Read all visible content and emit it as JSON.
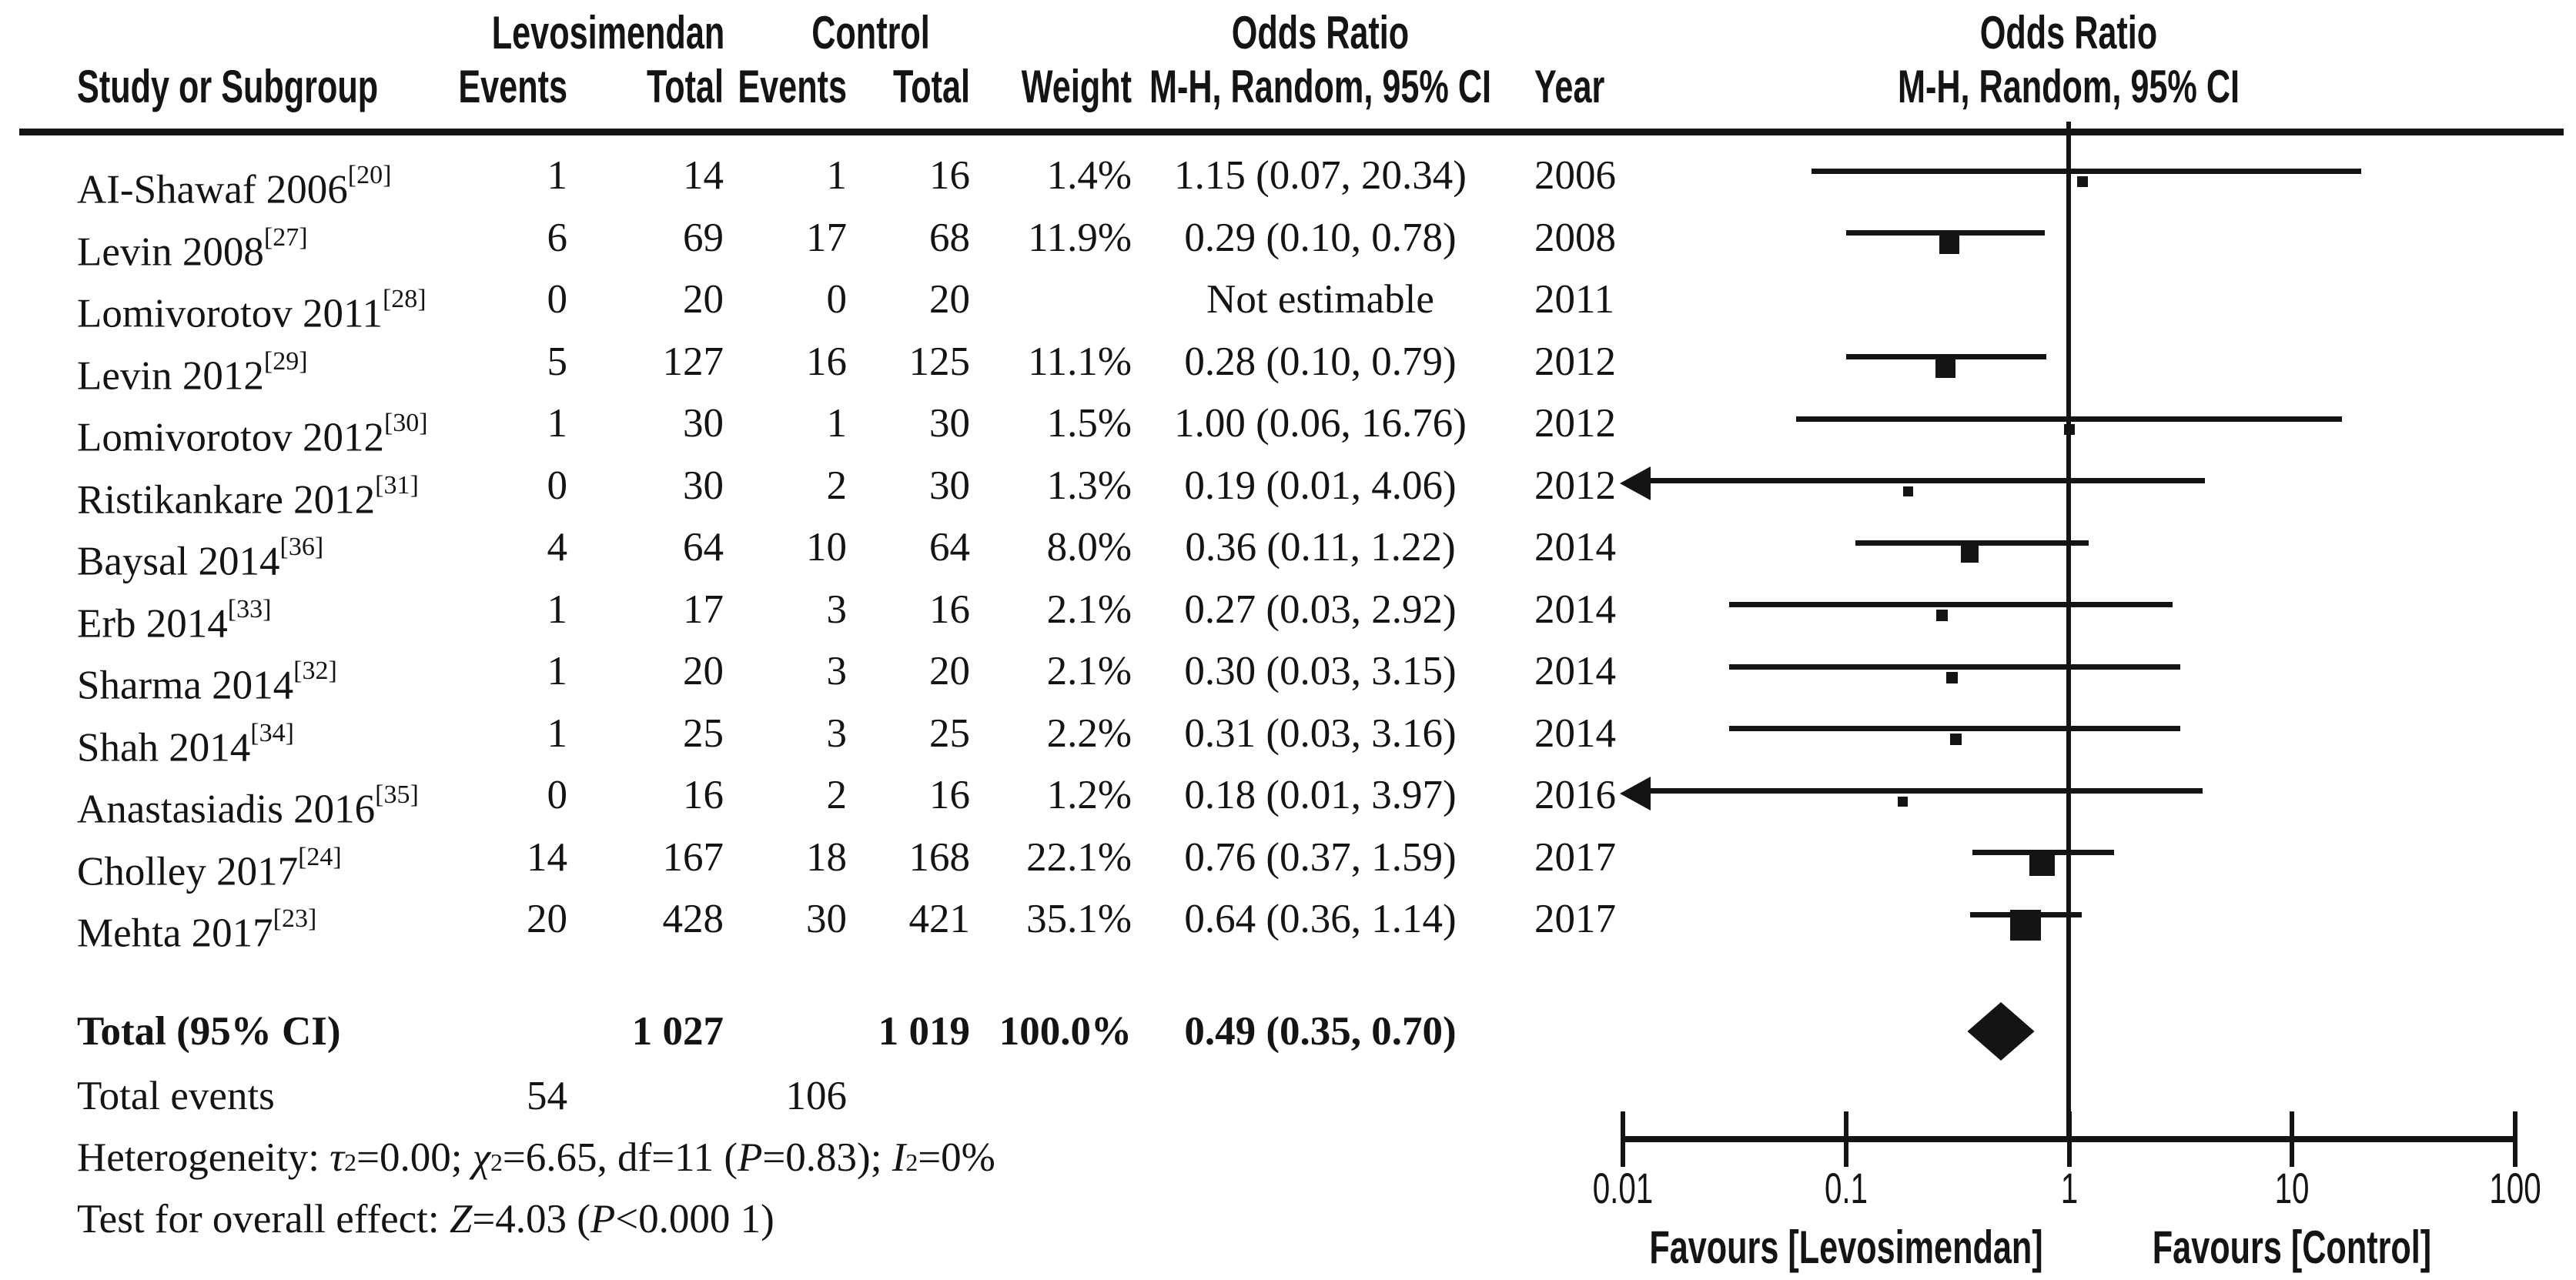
{
  "header": {
    "group_levosimendan": "Levosimendan",
    "group_control": "Control",
    "odds_ratio_table": "Odds Ratio",
    "odds_ratio_plot": "Odds Ratio",
    "study": "Study or Subgroup",
    "events_lev": "Events",
    "total_lev": "Total",
    "events_ctrl": "Events",
    "total_ctrl": "Total",
    "weight": "Weight",
    "mh_ci": "M-H, Random, 95% CI",
    "year": "Year",
    "mh_ci_plot": "M-H, Random, 95% CI"
  },
  "stats": {
    "heterogeneity": [
      {
        "t": "Heterogeneity: "
      },
      {
        "t": "τ",
        "i": true
      },
      {
        "t": "2",
        "sup": true
      },
      {
        "t": "=0.00; "
      },
      {
        "t": "χ",
        "i": true
      },
      {
        "t": "2",
        "sup": true
      },
      {
        "t": "=6.65, df=11 ("
      },
      {
        "t": "P",
        "i": true
      },
      {
        "t": "=0.83); "
      },
      {
        "t": "I",
        "i": true
      },
      {
        "t": "2",
        "sup": true
      },
      {
        "t": "=0%"
      }
    ],
    "overall": [
      {
        "t": "Test for overall effect: "
      },
      {
        "t": "Z",
        "i": true
      },
      {
        "t": "=4.03 ("
      },
      {
        "t": "P",
        "i": true
      },
      {
        "t": "<0.000 1)"
      }
    ]
  },
  "chart_data": {
    "type": "forest",
    "effect_measure": "Odds Ratio, M-H, Random, 95% CI",
    "x_axis": {
      "scale": "log10",
      "min": 0.01,
      "max": 100,
      "ticks": [
        0.01,
        0.1,
        1,
        10,
        100
      ],
      "tick_labels": [
        "0.01",
        "0.1",
        "1",
        "10",
        "100"
      ]
    },
    "favours": {
      "left": "Favours [Levosimendan]",
      "right": "Favours [Control]"
    },
    "studies": [
      {
        "name": "AI-Shawaf 2006",
        "ref": "[20]",
        "events_lev": "1",
        "total_lev": "14",
        "events_ctrl": "1",
        "total_ctrl": "16",
        "weight": "1.4%",
        "or_ci": "1.15 (0.07, 20.34)",
        "year": "2006",
        "or": 1.15,
        "lo": 0.07,
        "hi": 20.34,
        "w": 1.4,
        "estimable": true,
        "arrow_left": false
      },
      {
        "name": "Levin 2008",
        "ref": "[27]",
        "events_lev": "6",
        "total_lev": "69",
        "events_ctrl": "17",
        "total_ctrl": "68",
        "weight": "11.9%",
        "or_ci": "0.29 (0.10, 0.78)",
        "year": "2008",
        "or": 0.29,
        "lo": 0.1,
        "hi": 0.78,
        "w": 11.9,
        "estimable": true,
        "arrow_left": false
      },
      {
        "name": "Lomivorotov 2011",
        "ref": "[28]",
        "events_lev": "0",
        "total_lev": "20",
        "events_ctrl": "0",
        "total_ctrl": "20",
        "weight": "",
        "or_ci": "Not estimable",
        "year": "2011",
        "or": null,
        "lo": null,
        "hi": null,
        "w": null,
        "estimable": false,
        "arrow_left": false
      },
      {
        "name": "Levin 2012",
        "ref": "[29]",
        "events_lev": "5",
        "total_lev": "127",
        "events_ctrl": "16",
        "total_ctrl": "125",
        "weight": "11.1%",
        "or_ci": "0.28 (0.10, 0.79)",
        "year": "2012",
        "or": 0.28,
        "lo": 0.1,
        "hi": 0.79,
        "w": 11.1,
        "estimable": true,
        "arrow_left": false
      },
      {
        "name": "Lomivorotov 2012",
        "ref": "[30]",
        "events_lev": "1",
        "total_lev": "30",
        "events_ctrl": "1",
        "total_ctrl": "30",
        "weight": "1.5%",
        "or_ci": "1.00 (0.06, 16.76)",
        "year": "2012",
        "or": 1.0,
        "lo": 0.06,
        "hi": 16.76,
        "w": 1.5,
        "estimable": true,
        "arrow_left": false
      },
      {
        "name": "Ristikankare 2012",
        "ref": "[31]",
        "events_lev": "0",
        "total_lev": "30",
        "events_ctrl": "2",
        "total_ctrl": "30",
        "weight": "1.3%",
        "or_ci": "0.19 (0.01, 4.06)",
        "year": "2012",
        "or": 0.19,
        "lo": 0.01,
        "hi": 4.06,
        "w": 1.3,
        "estimable": true,
        "arrow_left": true
      },
      {
        "name": "Baysal 2014",
        "ref": "[36]",
        "events_lev": "4",
        "total_lev": "64",
        "events_ctrl": "10",
        "total_ctrl": "64",
        "weight": "8.0%",
        "or_ci": "0.36 (0.11, 1.22)",
        "year": "2014",
        "or": 0.36,
        "lo": 0.11,
        "hi": 1.22,
        "w": 8.0,
        "estimable": true,
        "arrow_left": false
      },
      {
        "name": "Erb 2014",
        "ref": "[33]",
        "events_lev": "1",
        "total_lev": "17",
        "events_ctrl": "3",
        "total_ctrl": "16",
        "weight": "2.1%",
        "or_ci": "0.27 (0.03, 2.92)",
        "year": "2014",
        "or": 0.27,
        "lo": 0.03,
        "hi": 2.92,
        "w": 2.1,
        "estimable": true,
        "arrow_left": false
      },
      {
        "name": "Sharma 2014",
        "ref": "[32]",
        "events_lev": "1",
        "total_lev": "20",
        "events_ctrl": "3",
        "total_ctrl": "20",
        "weight": "2.1%",
        "or_ci": "0.30 (0.03, 3.15)",
        "year": "2014",
        "or": 0.3,
        "lo": 0.03,
        "hi": 3.15,
        "w": 2.1,
        "estimable": true,
        "arrow_left": false
      },
      {
        "name": "Shah 2014",
        "ref": "[34]",
        "events_lev": "1",
        "total_lev": "25",
        "events_ctrl": "3",
        "total_ctrl": "25",
        "weight": "2.2%",
        "or_ci": "0.31 (0.03, 3.16)",
        "year": "2014",
        "or": 0.31,
        "lo": 0.03,
        "hi": 3.16,
        "w": 2.2,
        "estimable": true,
        "arrow_left": false
      },
      {
        "name": "Anastasiadis 2016",
        "ref": "[35]",
        "events_lev": "0",
        "total_lev": "16",
        "events_ctrl": "2",
        "total_ctrl": "16",
        "weight": "1.2%",
        "or_ci": "0.18 (0.01, 3.97)",
        "year": "2016",
        "or": 0.18,
        "lo": 0.01,
        "hi": 3.97,
        "w": 1.2,
        "estimable": true,
        "arrow_left": true
      },
      {
        "name": "Cholley 2017",
        "ref": "[24]",
        "events_lev": "14",
        "total_lev": "167",
        "events_ctrl": "18",
        "total_ctrl": "168",
        "weight": "22.1%",
        "or_ci": "0.76 (0.37, 1.59)",
        "year": "2017",
        "or": 0.76,
        "lo": 0.37,
        "hi": 1.59,
        "w": 22.1,
        "estimable": true,
        "arrow_left": false
      },
      {
        "name": "Mehta 2017",
        "ref": "[23]",
        "events_lev": "20",
        "total_lev": "428",
        "events_ctrl": "30",
        "total_ctrl": "421",
        "weight": "35.1%",
        "or_ci": "0.64 (0.36, 1.14)",
        "year": "2017",
        "or": 0.64,
        "lo": 0.36,
        "hi": 1.14,
        "w": 35.1,
        "estimable": true,
        "arrow_left": false
      }
    ],
    "total": {
      "label": "Total (95% CI)",
      "total_lev": "1 027",
      "total_ctrl": "1 019",
      "weight": "100.0%",
      "or_ci": "0.49 (0.35, 0.70)",
      "or": 0.49,
      "lo": 0.35,
      "hi": 0.7
    },
    "total_events": {
      "label": "Total events",
      "lev": "54",
      "ctrl": "106"
    }
  }
}
